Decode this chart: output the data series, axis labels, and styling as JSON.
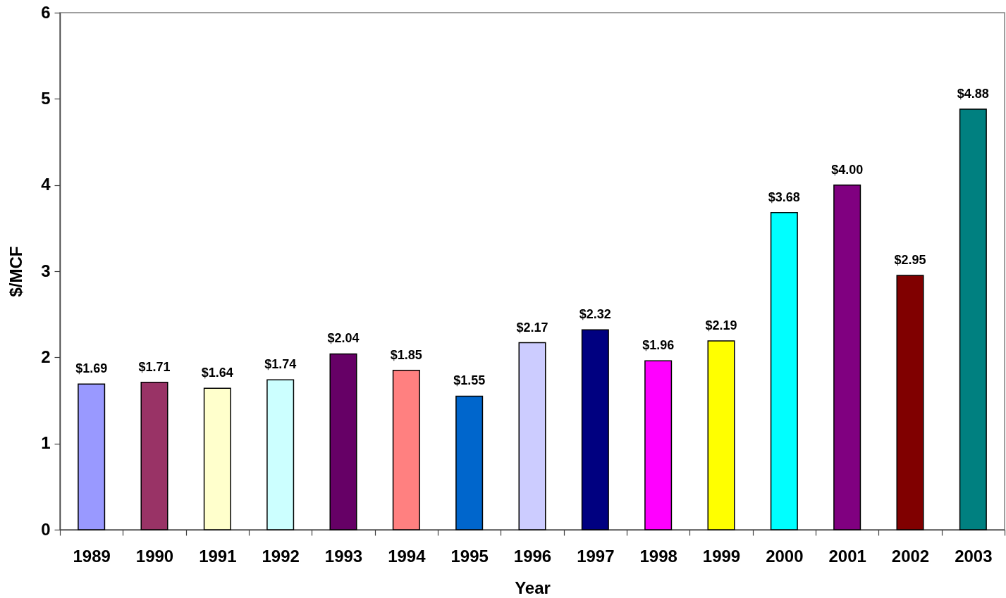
{
  "chart_data": {
    "type": "bar",
    "xlabel": "Year",
    "ylabel": "$/MCF",
    "categories": [
      "1989",
      "1990",
      "1991",
      "1992",
      "1993",
      "1994",
      "1995",
      "1996",
      "1997",
      "1998",
      "1999",
      "2000",
      "2001",
      "2002",
      "2003"
    ],
    "values": [
      1.69,
      1.71,
      1.64,
      1.74,
      2.04,
      1.85,
      1.55,
      2.17,
      2.32,
      1.96,
      2.19,
      3.68,
      4.0,
      2.95,
      4.88
    ],
    "colors": [
      "#9999ff",
      "#993366",
      "#ffffcc",
      "#ccffff",
      "#660066",
      "#ff8080",
      "#0066cc",
      "#ccccff",
      "#000080",
      "#ff00ff",
      "#ffff00",
      "#00ffff",
      "#800080",
      "#800000",
      "#008080"
    ],
    "value_labels": [
      "$1.69",
      "$1.71",
      "$1.64",
      "$1.74",
      "$2.04",
      "$1.85",
      "$1.55",
      "$2.17",
      "$2.32",
      "$1.96",
      "$2.19",
      "$3.68",
      "$4.00",
      "$2.95",
      "$4.88"
    ],
    "ylim": [
      0,
      6
    ],
    "yticks": [
      0,
      1,
      2,
      3,
      4,
      5,
      6
    ],
    "grid": false
  }
}
